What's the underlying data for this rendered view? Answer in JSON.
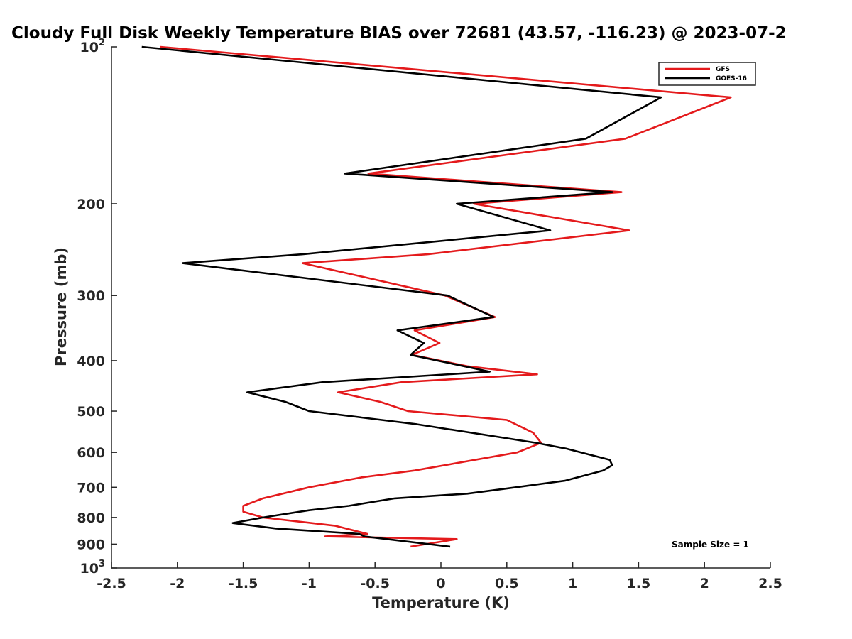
{
  "chart_data": {
    "type": "line",
    "title": "Cloudy Full Disk Weekly Temperature BIAS over 72681 (43.57, -116.23) @ 2023-07-2",
    "xlabel": "Temperature (K)",
    "ylabel": "Pressure (mb)",
    "xlim": [
      -2.5,
      2.5
    ],
    "ylim": [
      100,
      1000
    ],
    "yscale": "log",
    "y_reversed": true,
    "x_ticks": [
      -2.5,
      -2,
      -1.5,
      -1,
      -0.5,
      0,
      0.5,
      1,
      1.5,
      2,
      2.5
    ],
    "x_tick_labels": [
      "-2.5",
      "-2",
      "-1.5",
      "-1",
      "-0.5",
      "0",
      "0.5",
      "1",
      "1.5",
      "2",
      "2.5"
    ],
    "y_ticks": [
      100,
      200,
      300,
      400,
      500,
      600,
      700,
      800,
      900,
      1000
    ],
    "y_tick_labels": [
      {
        "base": "10",
        "exp": "2"
      },
      {
        "base": "200",
        "exp": ""
      },
      {
        "base": "300",
        "exp": ""
      },
      {
        "base": "400",
        "exp": ""
      },
      {
        "base": "500",
        "exp": ""
      },
      {
        "base": "600",
        "exp": ""
      },
      {
        "base": "700",
        "exp": ""
      },
      {
        "base": "800",
        "exp": ""
      },
      {
        "base": "900",
        "exp": ""
      },
      {
        "base": "10",
        "exp": "3"
      }
    ],
    "grid": false,
    "legend_position": "top-right",
    "annotation": "Sample Size = 1",
    "series": [
      {
        "name": "GFS",
        "color": "#e41a1c",
        "points": [
          [
            -2.13,
            100
          ],
          [
            2.2,
            125
          ],
          [
            1.4,
            150
          ],
          [
            -0.55,
            175
          ],
          [
            1.37,
            190
          ],
          [
            0.25,
            200
          ],
          [
            1.43,
            225
          ],
          [
            -0.1,
            250
          ],
          [
            -1.05,
            260
          ],
          [
            0.03,
            300
          ],
          [
            0.41,
            330
          ],
          [
            -0.2,
            350
          ],
          [
            -0.01,
            370
          ],
          [
            -0.22,
            390
          ],
          [
            0.2,
            410
          ],
          [
            0.73,
            425
          ],
          [
            -0.3,
            440
          ],
          [
            -0.78,
            460
          ],
          [
            -0.46,
            480
          ],
          [
            -0.25,
            500
          ],
          [
            0.5,
            520
          ],
          [
            0.7,
            550
          ],
          [
            0.76,
            575
          ],
          [
            0.58,
            600
          ],
          [
            -0.2,
            650
          ],
          [
            -0.6,
            670
          ],
          [
            -1.0,
            700
          ],
          [
            -1.35,
            735
          ],
          [
            -1.5,
            760
          ],
          [
            -1.5,
            780
          ],
          [
            -1.35,
            800
          ],
          [
            -0.8,
            830
          ],
          [
            -0.56,
            860
          ],
          [
            -0.88,
            870
          ],
          [
            0.12,
            880
          ],
          [
            -0.23,
            910
          ]
        ]
      },
      {
        "name": "GOES-16",
        "color": "#000000",
        "points": [
          [
            -2.27,
            100
          ],
          [
            1.67,
            125
          ],
          [
            1.1,
            150
          ],
          [
            -0.73,
            175
          ],
          [
            1.3,
            190
          ],
          [
            0.12,
            200
          ],
          [
            0.83,
            225
          ],
          [
            -1.05,
            250
          ],
          [
            -1.96,
            260
          ],
          [
            0.05,
            300
          ],
          [
            0.4,
            330
          ],
          [
            -0.33,
            350
          ],
          [
            -0.13,
            370
          ],
          [
            -0.23,
            390
          ],
          [
            0.37,
            420
          ],
          [
            -0.9,
            440
          ],
          [
            -1.47,
            460
          ],
          [
            -1.18,
            480
          ],
          [
            -1.0,
            500
          ],
          [
            -0.18,
            530
          ],
          [
            0.72,
            575
          ],
          [
            0.95,
            590
          ],
          [
            1.28,
            620
          ],
          [
            1.3,
            635
          ],
          [
            1.23,
            650
          ],
          [
            0.94,
            680
          ],
          [
            0.57,
            700
          ],
          [
            0.2,
            720
          ],
          [
            -0.35,
            735
          ],
          [
            -0.7,
            760
          ],
          [
            -1.0,
            775
          ],
          [
            -1.35,
            800
          ],
          [
            -1.58,
            820
          ],
          [
            -1.25,
            840
          ],
          [
            -0.62,
            860
          ],
          [
            -0.58,
            870
          ],
          [
            0.07,
            910
          ]
        ]
      }
    ]
  }
}
